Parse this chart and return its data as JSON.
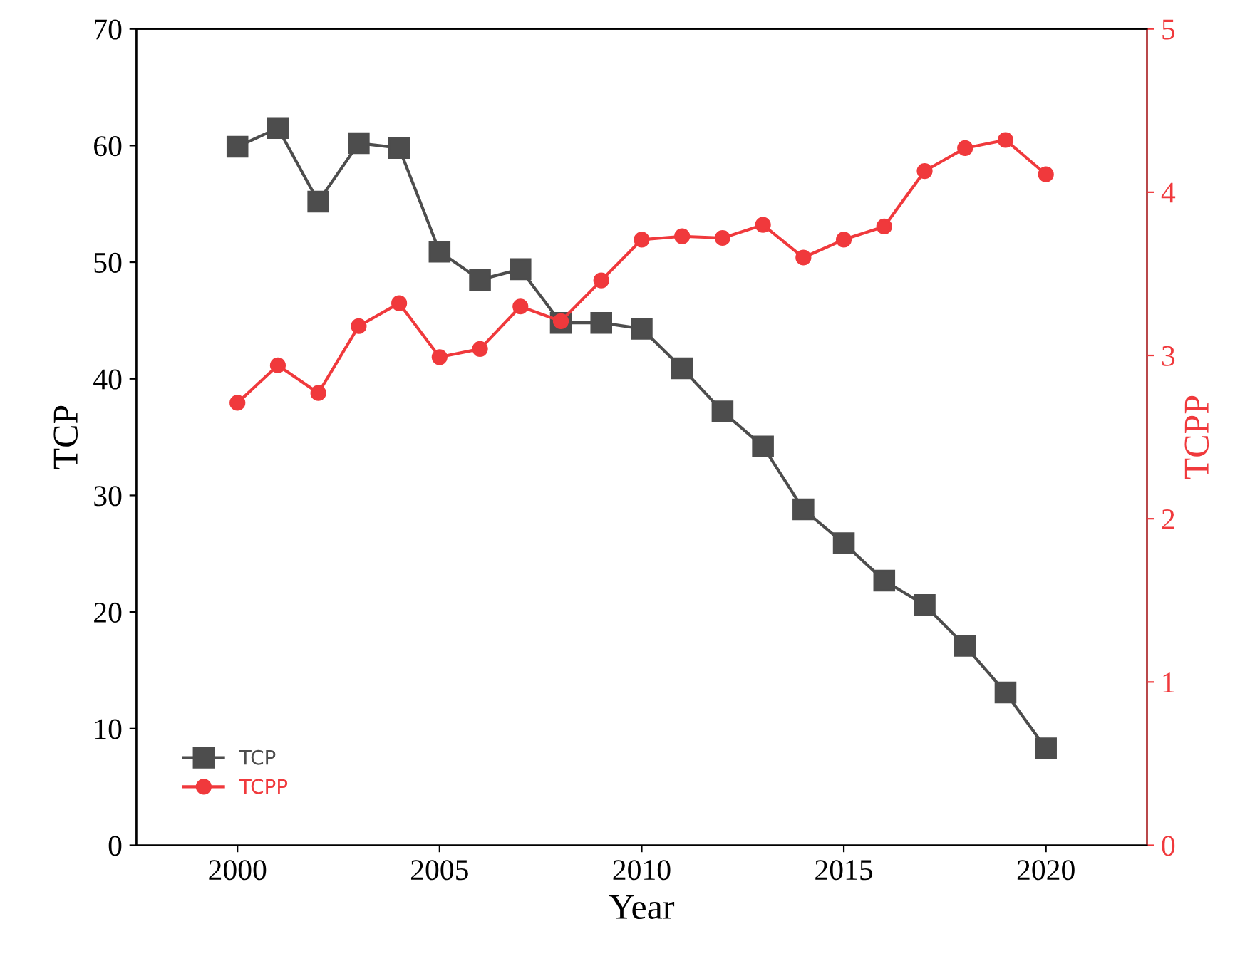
{
  "chart_data": {
    "type": "line",
    "xlabel": "Year",
    "ylabel": "TCP",
    "y2label": "TCPP",
    "x": [
      2000,
      2001,
      2002,
      2003,
      2004,
      2005,
      2006,
      2007,
      2008,
      2009,
      2010,
      2011,
      2012,
      2013,
      2014,
      2015,
      2016,
      2017,
      2018,
      2019,
      2020
    ],
    "series": [
      {
        "name": "TCP",
        "color": "#4d4d4d",
        "marker": "square",
        "values": [
          59.9,
          61.5,
          55.2,
          60.2,
          59.8,
          50.9,
          48.5,
          49.4,
          44.8,
          44.8,
          44.3,
          40.9,
          37.2,
          34.2,
          28.8,
          25.9,
          22.7,
          20.6,
          17.1,
          13.1,
          8.3
        ]
      },
      {
        "name": "TCPP",
        "color": "#f0393c",
        "marker": "circle",
        "axis": "y2",
        "values": [
          2.71,
          2.94,
          2.77,
          3.18,
          3.32,
          2.99,
          3.04,
          3.3,
          3.21,
          3.46,
          3.71,
          3.73,
          3.72,
          3.8,
          3.6,
          3.71,
          3.79,
          4.13,
          4.27,
          4.32,
          4.11
        ]
      }
    ],
    "xlim": [
      1997.5,
      2022.5
    ],
    "xticks": [
      2000,
      2005,
      2010,
      2015,
      2020
    ],
    "ylim": [
      0,
      70
    ],
    "yticks": [
      0,
      10,
      20,
      30,
      40,
      50,
      60,
      70
    ],
    "y2lim": [
      0,
      5
    ],
    "y2ticks": [
      0,
      1,
      2,
      3,
      4,
      5
    ],
    "legend": "bottom left",
    "grid": false
  }
}
